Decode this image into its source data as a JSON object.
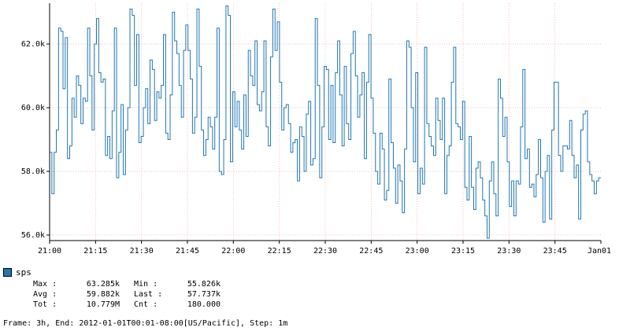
{
  "chart_data": {
    "type": "line",
    "step": true,
    "title": "",
    "xlabel": "",
    "ylabel": "",
    "x_ticks": [
      "21:00",
      "21:15",
      "21:30",
      "21:45",
      "22:00",
      "22:15",
      "22:30",
      "22:45",
      "23:00",
      "23:15",
      "23:30",
      "23:45",
      "Jan01"
    ],
    "y_ticks": [
      "56.0k",
      "58.0k",
      "60.0k",
      "62.0k"
    ],
    "y_tick_values": [
      56000,
      58000,
      60000,
      62000
    ],
    "ylim": [
      55826,
      63285
    ],
    "grid": true,
    "series": [
      {
        "name": "sps",
        "color": "#1f77b4",
        "values": [
          58600,
          57300,
          58600,
          59300,
          62500,
          62400,
          60600,
          62200,
          58400,
          58800,
          60300,
          59700,
          61000,
          60700,
          59500,
          60300,
          60200,
          62500,
          61000,
          59300,
          62000,
          62800,
          61100,
          60800,
          60900,
          58500,
          59100,
          58400,
          59900,
          62500,
          57800,
          58600,
          60100,
          57900,
          59300,
          60000,
          63100,
          62900,
          60700,
          62300,
          58900,
          59100,
          60000,
          60600,
          59500,
          61500,
          61200,
          59600,
          60500,
          60300,
          60700,
          62300,
          59200,
          59000,
          60400,
          63000,
          62100,
          61700,
          60700,
          59700,
          61800,
          62600,
          61800,
          60900,
          59200,
          59700,
          63100,
          61300,
          59300,
          58500,
          59000,
          59700,
          59400,
          58700,
          59700,
          62500,
          58000,
          57900,
          59000,
          63200,
          62900,
          58300,
          60500,
          59400,
          60200,
          59300,
          58700,
          60400,
          59100,
          61800,
          61000,
          60700,
          62100,
          60100,
          59900,
          60500,
          62100,
          59400,
          58800,
          61600,
          63100,
          61800,
          62700,
          60800,
          59300,
          60000,
          60100,
          59500,
          58600,
          58900,
          59000,
          57700,
          59400,
          59100,
          58000,
          59800,
          60200,
          58200,
          58400,
          62800,
          60700,
          57800,
          59400,
          61300,
          61200,
          59000,
          60700,
          58900,
          61100,
          62100,
          60400,
          58800,
          61300,
          59500,
          59000,
          61700,
          62400,
          61000,
          59700,
          60400,
          61100,
          58400,
          60800,
          62300,
          60300,
          59200,
          58000,
          57600,
          59200,
          58700,
          57100,
          57400,
          60900,
          58900,
          58100,
          57000,
          58200,
          57700,
          56700,
          58700,
          62100,
          61900,
          60000,
          58300,
          61100,
          57300,
          58100,
          57600,
          61900,
          59500,
          59100,
          58800,
          58500,
          60300,
          59600,
          59000,
          60300,
          57300,
          58500,
          58800,
          60800,
          61900,
          59500,
          59400,
          59000,
          60200,
          57500,
          57100,
          59100,
          57500,
          56800,
          58100,
          58300,
          57800,
          57100,
          56600,
          55900,
          57700,
          58300,
          57300,
          56600,
          60900,
          60300,
          59100,
          59700,
          58300,
          56900,
          57700,
          56600,
          57700,
          57600,
          59400,
          61200,
          58400,
          58700,
          57500,
          57600,
          57200,
          57900,
          59000,
          57800,
          56400,
          58000,
          58500,
          56500,
          59300,
          60800,
          60800,
          58500,
          58000,
          58800,
          58800,
          58700,
          59600,
          58500,
          57800,
          58200,
          56500,
          59300,
          59800,
          59900,
          58300,
          57900,
          57700,
          57300,
          57700,
          57800
        ]
      }
    ]
  },
  "legend": {
    "series_name": "sps",
    "stats": [
      {
        "k1": "Max :",
        "v1": "63.285k",
        "k2": "Min :",
        "v2": "55.826k"
      },
      {
        "k1": "Avg :",
        "v1": "59.882k",
        "k2": "Last :",
        "v2": "57.737k"
      },
      {
        "k1": "Tot :",
        "v1": "10.779M",
        "k2": "Cnt :",
        "v2": "180.000"
      }
    ]
  },
  "footer": "Frame: 3h, End: 2012-01-01T00:01-08:00[US/Pacific], Step: 1m"
}
